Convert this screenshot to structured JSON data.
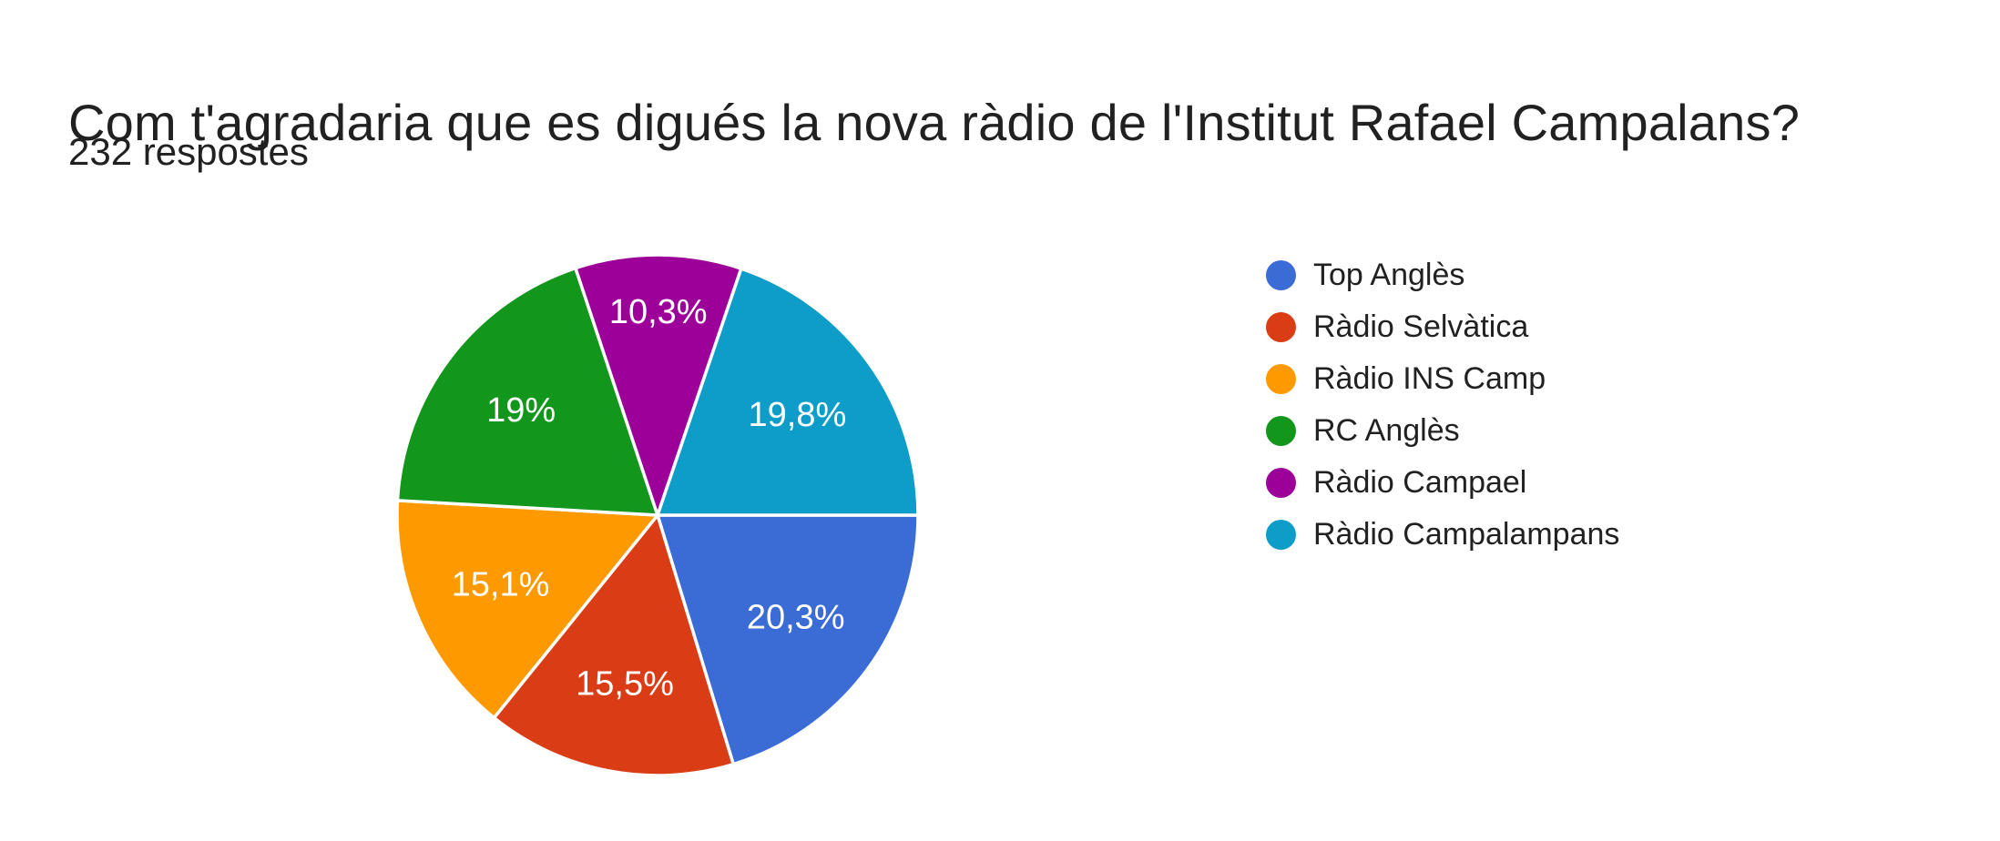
{
  "page": {
    "background": "#FFFFFF",
    "text_color": "#212121"
  },
  "header": {
    "title": "Com t'agradaria que es digués la nova ràdio de l'Institut Rafael Campalans?",
    "subtitle": "232 respostes",
    "responses_count": 232
  },
  "chart_data": {
    "type": "pie",
    "title": "Com t'agradaria que es digués la nova ràdio de l'Institut Rafael Campalans?",
    "subtitle": "232 respostes",
    "categories": [
      "Top Anglès",
      "Ràdio Selvàtica",
      "Ràdio INS Camp",
      "RC Anglès",
      "Ràdio Campael",
      "Ràdio Campalampans"
    ],
    "values": [
      20.3,
      15.5,
      15.1,
      19,
      10.3,
      19.8
    ],
    "value_labels": [
      "20,3%",
      "15,5%",
      "15,1%",
      "19%",
      "10,3%",
      "19,8%"
    ],
    "colors": [
      "#3B6CD6",
      "#DA3D15",
      "#FF9900",
      "#12961B",
      "#9C0098",
      "#0E9DC8"
    ],
    "start_angle_deg_clockwise_from_east": 0,
    "direction": "clockwise",
    "legend_position": "right",
    "legend_marker": "circle",
    "slice_label_color": "#FFFFFF",
    "grid": false
  }
}
